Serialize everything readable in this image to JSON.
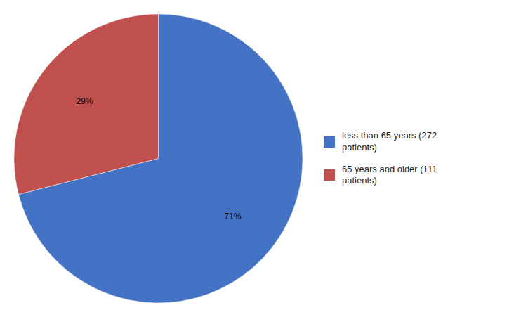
{
  "chart_data": {
    "type": "pie",
    "categories": [
      "less than 65 years (272\npatients)",
      "65 years and older (111\npatients)"
    ],
    "values": [
      71,
      29
    ],
    "value_labels": [
      "71%",
      "29%"
    ],
    "colors": [
      "#4472C4",
      "#C0504D"
    ],
    "data_labels": true,
    "legend": "right"
  }
}
